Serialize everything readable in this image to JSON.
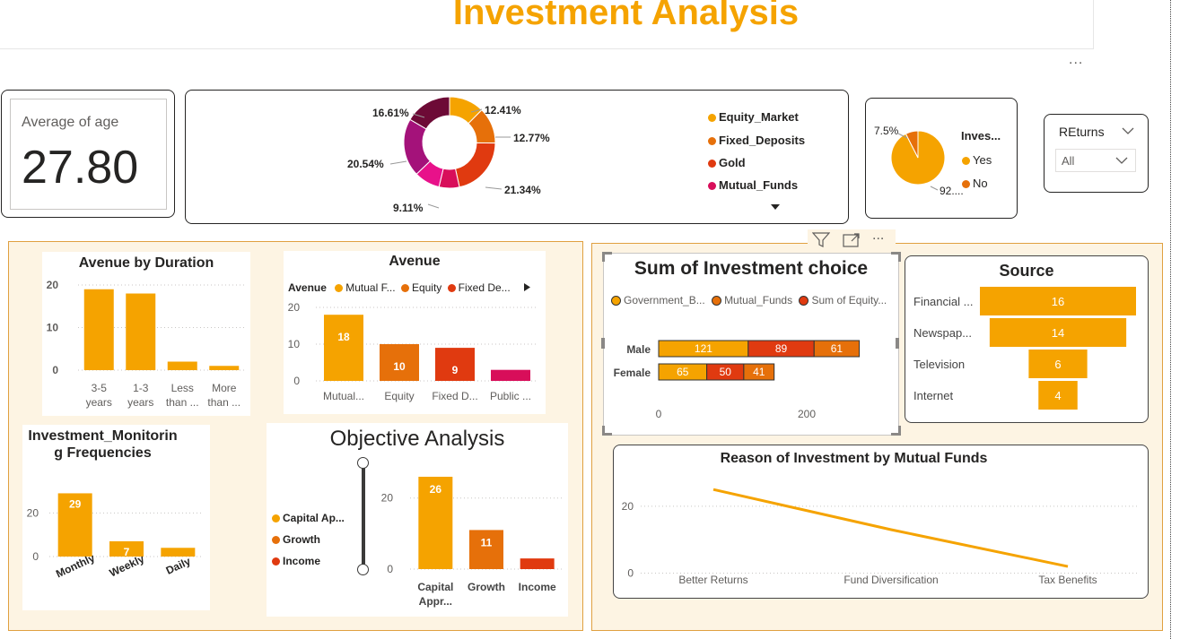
{
  "header": {
    "title": "Investment Analysis",
    "more": "..."
  },
  "kpi": {
    "label": "Average of age",
    "value": "27.80"
  },
  "donut": {
    "labels": {
      "a": "12.41%",
      "b": "12.77%",
      "c": "21.34%",
      "d": "9.11%",
      "e": "20.54%",
      "f": "16.61%"
    },
    "legend": [
      "Equity_Market",
      "Fixed_Deposits",
      "Gold",
      "Mutual_Funds"
    ],
    "chart_data": {
      "type": "pie",
      "values": [
        12.41,
        12.77,
        21.34,
        7.21,
        9.11,
        20.54,
        16.61
      ],
      "colors": [
        "#f5a300",
        "#e6700a",
        "#e03a10",
        "#d80e5a",
        "#e8118a",
        "#a4127a",
        "#6d0a36"
      ]
    }
  },
  "pie": {
    "legend_title": "Inves...",
    "legend": [
      "Yes",
      "No"
    ],
    "labels": {
      "no": "7.5%",
      "yes": "92...."
    },
    "chart_data": {
      "type": "pie",
      "values": [
        92.5,
        7.5
      ],
      "colors": [
        "#f5a300",
        "#e6700a"
      ]
    }
  },
  "slicer": {
    "label": "REturns",
    "value": "All"
  },
  "colors": {
    "yellow": "#f5a300",
    "orange": "#e6700a",
    "red": "#e03a10",
    "magenta": "#d80e5a",
    "panel_bg": "#fdf4e3"
  },
  "duration": {
    "title": "Avenue by Duration",
    "chart_data": {
      "type": "bar",
      "categories": [
        [
          "3-5",
          "years"
        ],
        [
          "1-3",
          "years"
        ],
        [
          "Less",
          "than ..."
        ],
        [
          "More",
          "than ..."
        ]
      ],
      "values": [
        19,
        18,
        2,
        1
      ],
      "ylim": [
        0,
        20
      ],
      "yticks": [
        0,
        10,
        20
      ]
    }
  },
  "avenue": {
    "title": "Avenue",
    "legend_title": "Avenue",
    "legend": [
      "Mutual F...",
      "Equity",
      "Fixed De..."
    ],
    "chart_data": {
      "type": "bar",
      "categories": [
        "Mutual...",
        "Equity",
        "Fixed D...",
        "Public ..."
      ],
      "values": [
        18,
        10,
        9,
        3
      ],
      "data_labels": [
        "18",
        "10",
        "9",
        ""
      ],
      "colors": [
        "#f5a300",
        "#e6700a",
        "#e03a10",
        "#d80e5a"
      ],
      "ylim": [
        0,
        20
      ],
      "yticks": [
        0,
        10,
        20
      ]
    }
  },
  "monitoring": {
    "title": "Investment_Monitorin g Frequencies",
    "chart_data": {
      "type": "bar",
      "categories": [
        "Monthly",
        "Weekly",
        "Daily"
      ],
      "values": [
        29,
        7,
        4
      ],
      "data_labels": [
        "29",
        "7",
        ""
      ],
      "ylim": [
        0,
        30
      ],
      "yticks": [
        0,
        20
      ]
    }
  },
  "objective": {
    "title": "Objective Analysis",
    "legend": [
      "Capital Ap...",
      "Growth",
      "Income"
    ],
    "chart_data": {
      "type": "bar",
      "categories": [
        [
          "Capital",
          "Appr..."
        ],
        [
          "Growth"
        ],
        [
          "Income"
        ]
      ],
      "values": [
        26,
        11,
        3
      ],
      "data_labels": [
        "26",
        "11",
        ""
      ],
      "colors": [
        "#f5a300",
        "#e6700a",
        "#e03a10"
      ],
      "ylim": [
        0,
        27
      ],
      "yticks": [
        0,
        20
      ]
    }
  },
  "choice": {
    "title": "Sum of Investment choice",
    "legend": [
      "Government_B...",
      "Mutual_Funds",
      "Sum of Equity..."
    ],
    "chart_data": {
      "type": "bar",
      "orientation": "horizontal-stacked",
      "categories": [
        "Male",
        "Female"
      ],
      "series": [
        {
          "values": [
            121,
            65
          ],
          "color": "#f5a300"
        },
        {
          "values": [
            89,
            50
          ],
          "color": "#e03a10"
        },
        {
          "values": [
            61,
            41
          ],
          "color": "#e6700a"
        }
      ],
      "xticks": [
        0,
        200
      ],
      "xlim": [
        0,
        300
      ]
    }
  },
  "source": {
    "title": "Source",
    "chart_data": {
      "type": "bar",
      "orientation": "funnel",
      "categories": [
        "Financial ...",
        "Newspap...",
        "Television",
        "Internet"
      ],
      "values": [
        16,
        14,
        6,
        4
      ]
    }
  },
  "reason": {
    "title": "Reason of Investment by Mutual Funds",
    "chart_data": {
      "type": "line",
      "categories": [
        "Better Returns",
        "Fund Diversification",
        "Tax Benefits"
      ],
      "values": [
        25,
        13,
        2
      ],
      "yticks": [
        0,
        20
      ],
      "ylim": [
        -2,
        28
      ]
    }
  },
  "toolbar_icons": [
    "filter-icon",
    "focus-mode-icon",
    "more-options-icon"
  ]
}
